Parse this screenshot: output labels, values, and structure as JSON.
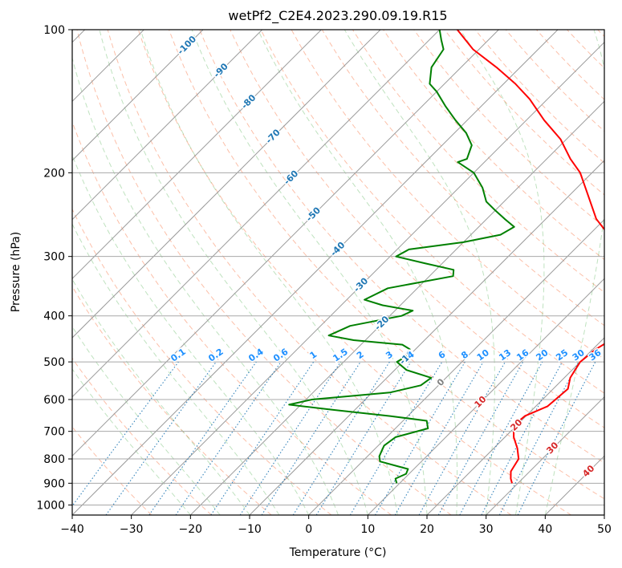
{
  "chart_data": {
    "type": "line",
    "title": "wetPf2_C2E4.2023.290.09.19.R15",
    "xlabel": "Temperature (°C)",
    "ylabel": "Pressure (hPa)",
    "xlim": [
      -40,
      50
    ],
    "ylim": [
      1050,
      100
    ],
    "y_scale": "log",
    "grid": true,
    "x_ticks": [
      -40,
      -30,
      -20,
      -10,
      0,
      10,
      20,
      30,
      40,
      50
    ],
    "y_ticks": [
      100,
      200,
      300,
      400,
      500,
      600,
      700,
      800,
      900,
      1000
    ],
    "series": [
      {
        "color": "#ff0000",
        "points": [
          [
            900,
            29.0
          ],
          [
            880,
            28.0
          ],
          [
            850,
            26.8
          ],
          [
            800,
            26.0
          ],
          [
            760,
            24.0
          ],
          [
            720,
            21.5
          ],
          [
            680,
            19.5
          ],
          [
            650,
            19.8
          ],
          [
            620,
            22.0
          ],
          [
            570,
            22.5
          ],
          [
            540,
            21.0
          ],
          [
            500,
            20.0
          ],
          [
            470,
            20.5
          ],
          [
            440,
            22.0
          ],
          [
            420,
            21.5
          ],
          [
            400,
            20.0
          ],
          [
            370,
            18.0
          ],
          [
            330,
            14.0
          ],
          [
            300,
            10.0
          ],
          [
            280,
            5.5
          ],
          [
            250,
            -1.5
          ],
          [
            220,
            -7.5
          ],
          [
            200,
            -12.0
          ],
          [
            187,
            -16.0
          ],
          [
            170,
            -21.0
          ],
          [
            155,
            -27.0
          ],
          [
            140,
            -33.0
          ],
          [
            130,
            -38.0
          ],
          [
            120,
            -44.0
          ],
          [
            110,
            -51.0
          ],
          [
            100,
            -57.0
          ]
        ]
      },
      {
        "color": "#008000",
        "points": [
          [
            900,
            9.5
          ],
          [
            880,
            8.5
          ],
          [
            860,
            9.5
          ],
          [
            840,
            9.0
          ],
          [
            830,
            7.0
          ],
          [
            810,
            3.0
          ],
          [
            790,
            2.0
          ],
          [
            770,
            1.5
          ],
          [
            750,
            1.0
          ],
          [
            720,
            1.5
          ],
          [
            690,
            5.5
          ],
          [
            665,
            4.0
          ],
          [
            650,
            -3.0
          ],
          [
            630,
            -14.0
          ],
          [
            615,
            -22.0
          ],
          [
            600,
            -19.0
          ],
          [
            580,
            -7.0
          ],
          [
            560,
            -3.0
          ],
          [
            540,
            -2.5
          ],
          [
            520,
            -8.0
          ],
          [
            500,
            -11.0
          ],
          [
            480,
            -10.0
          ],
          [
            470,
            -11.0
          ],
          [
            460,
            -13.0
          ],
          [
            450,
            -22.0
          ],
          [
            440,
            -27.0
          ],
          [
            420,
            -25.0
          ],
          [
            400,
            -18.0
          ],
          [
            390,
            -17.0
          ],
          [
            380,
            -23.0
          ],
          [
            370,
            -27.0
          ],
          [
            350,
            -25.0
          ],
          [
            330,
            -16.0
          ],
          [
            320,
            -17.0
          ],
          [
            310,
            -23.0
          ],
          [
            300,
            -29.0
          ],
          [
            290,
            -28.0
          ],
          [
            280,
            -20.0
          ],
          [
            270,
            -15.0
          ],
          [
            260,
            -14.0
          ],
          [
            250,
            -17.0
          ],
          [
            240,
            -20.0
          ],
          [
            230,
            -23.0
          ],
          [
            215,
            -26.0
          ],
          [
            200,
            -30.0
          ],
          [
            190,
            -34.5
          ],
          [
            187,
            -33.5
          ],
          [
            175,
            -35.0
          ],
          [
            165,
            -38.0
          ],
          [
            155,
            -42.0
          ],
          [
            145,
            -46.0
          ],
          [
            135,
            -50.0
          ],
          [
            130,
            -52.5
          ],
          [
            120,
            -55.0
          ],
          [
            110,
            -56.0
          ],
          [
            105,
            -58.0
          ],
          [
            100,
            -60.0
          ]
        ]
      }
    ],
    "isotherm_labels": [
      "-100",
      "-90",
      "-80",
      "-70",
      "-60",
      "-50",
      "-40",
      "-30",
      "-20",
      "-10"
    ],
    "mixing_ratio_labels": [
      "0.1",
      "0.2",
      "0.4",
      "0.6",
      "1",
      "1.5",
      "2",
      "3",
      "4",
      "6",
      "8",
      "10",
      "13",
      "16",
      "20",
      "25",
      "30",
      "36"
    ],
    "isotherm_labels_warm": [
      "0",
      "10",
      "20",
      "30",
      "40"
    ]
  }
}
